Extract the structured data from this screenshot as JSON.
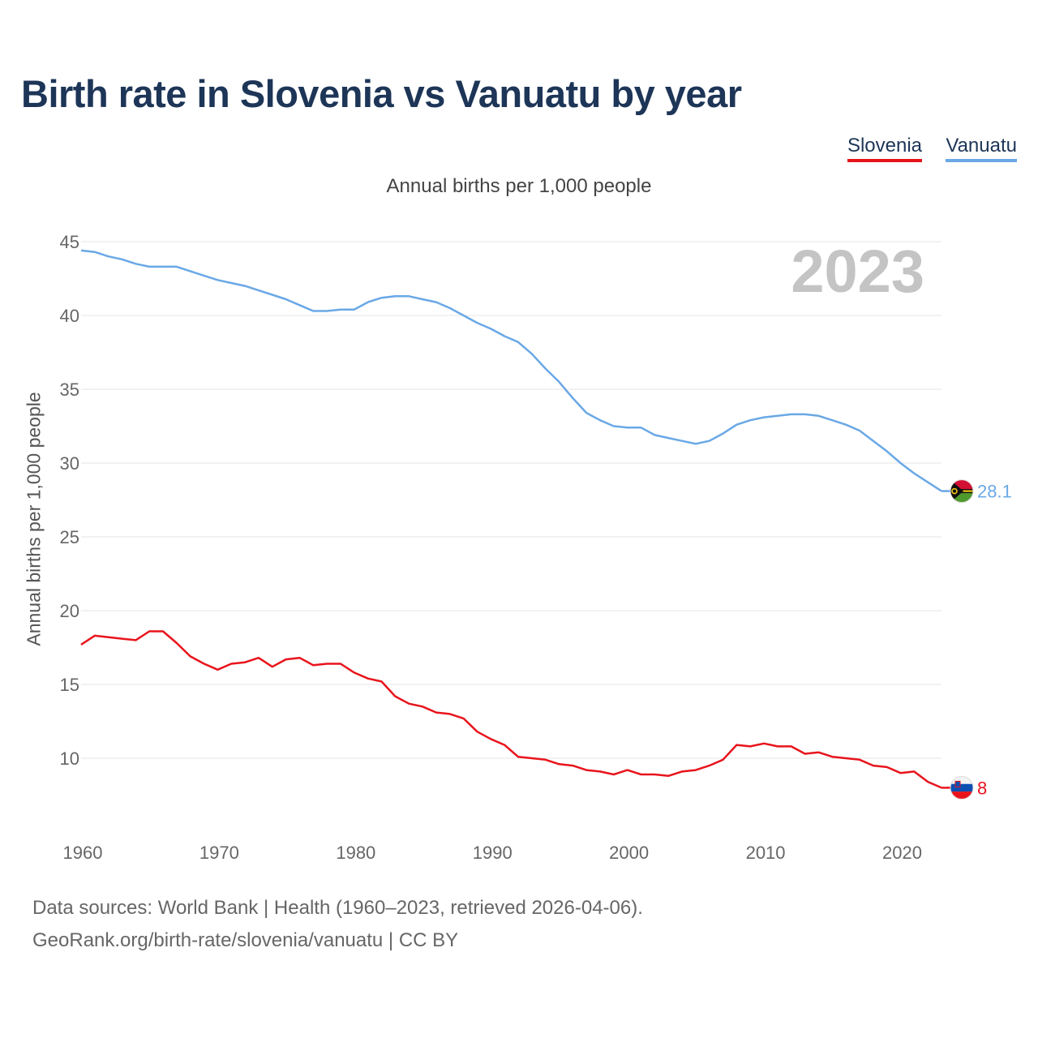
{
  "title": "Birth rate in Slovenia vs Vanuatu by year",
  "legend": {
    "slovenia_label": "Slovenia",
    "vanuatu_label": "Vanuatu"
  },
  "subtitle": "Annual births per 1,000 people",
  "year_overlay": "2023",
  "footer": {
    "line1": "Data sources: World Bank | Health (1960–2023, retrieved 2026-04-06).",
    "line2": "GeoRank.org/birth-rate/slovenia/vanuatu | CC BY"
  },
  "colors": {
    "slovenia": "#e8141c",
    "vanuatu": "#6aa8e6",
    "title": "#1d3557",
    "grid": "#e6e6e6",
    "year_overlay": "#c4c4c4"
  },
  "chart_data": {
    "type": "line",
    "title": "Annual births per 1,000 people",
    "xlabel": "",
    "ylabel": "Annual births per 1,000 people",
    "xlim": [
      1960,
      2023
    ],
    "ylim": [
      7,
      45
    ],
    "y_ticks": [
      10,
      15,
      20,
      25,
      30,
      35,
      40,
      45
    ],
    "x_ticks": [
      1960,
      1970,
      1980,
      1990,
      2000,
      2010,
      2020
    ],
    "grid": true,
    "x": [
      1960,
      1961,
      1962,
      1963,
      1964,
      1965,
      1966,
      1967,
      1968,
      1969,
      1970,
      1971,
      1972,
      1973,
      1974,
      1975,
      1976,
      1977,
      1978,
      1979,
      1980,
      1981,
      1982,
      1983,
      1984,
      1985,
      1986,
      1987,
      1988,
      1989,
      1990,
      1991,
      1992,
      1993,
      1994,
      1995,
      1996,
      1997,
      1998,
      1999,
      2000,
      2001,
      2002,
      2003,
      2004,
      2005,
      2006,
      2007,
      2008,
      2009,
      2010,
      2011,
      2012,
      2013,
      2014,
      2015,
      2016,
      2017,
      2018,
      2019,
      2020,
      2021,
      2022,
      2023
    ],
    "series": [
      {
        "name": "Vanuatu",
        "color": "#6aa8e6",
        "end_label": "28.1",
        "values": [
          44.4,
          44.3,
          44.0,
          43.8,
          43.5,
          43.3,
          43.3,
          43.3,
          43.0,
          42.7,
          42.4,
          42.2,
          42.0,
          41.7,
          41.4,
          41.1,
          40.7,
          40.3,
          40.3,
          40.4,
          40.4,
          40.9,
          41.2,
          41.3,
          41.3,
          41.1,
          40.9,
          40.5,
          40.0,
          39.5,
          39.1,
          38.6,
          38.2,
          37.4,
          36.4,
          35.5,
          34.4,
          33.4,
          32.9,
          32.5,
          32.4,
          32.4,
          31.9,
          31.7,
          31.5,
          31.3,
          31.5,
          32.0,
          32.6,
          32.9,
          33.1,
          33.2,
          33.3,
          33.3,
          33.2,
          32.9,
          32.6,
          32.2,
          31.5,
          30.8,
          30.0,
          29.3,
          28.7,
          28.1
        ]
      },
      {
        "name": "Slovenia",
        "color": "#e8141c",
        "end_label": "8",
        "values": [
          17.7,
          18.3,
          18.2,
          18.1,
          18.0,
          18.6,
          18.6,
          17.8,
          16.9,
          16.4,
          16.0,
          16.4,
          16.5,
          16.8,
          16.2,
          16.7,
          16.8,
          16.3,
          16.4,
          16.4,
          15.8,
          15.4,
          15.2,
          14.2,
          13.7,
          13.5,
          13.1,
          13.0,
          12.7,
          11.8,
          11.3,
          10.9,
          10.1,
          10.0,
          9.9,
          9.6,
          9.5,
          9.2,
          9.1,
          8.9,
          9.2,
          8.9,
          8.9,
          8.8,
          9.1,
          9.2,
          9.5,
          9.9,
          10.9,
          10.8,
          11.0,
          10.8,
          10.8,
          10.3,
          10.4,
          10.1,
          10.0,
          9.9,
          9.5,
          9.4,
          9.0,
          9.1,
          8.4,
          8.0
        ]
      }
    ]
  }
}
